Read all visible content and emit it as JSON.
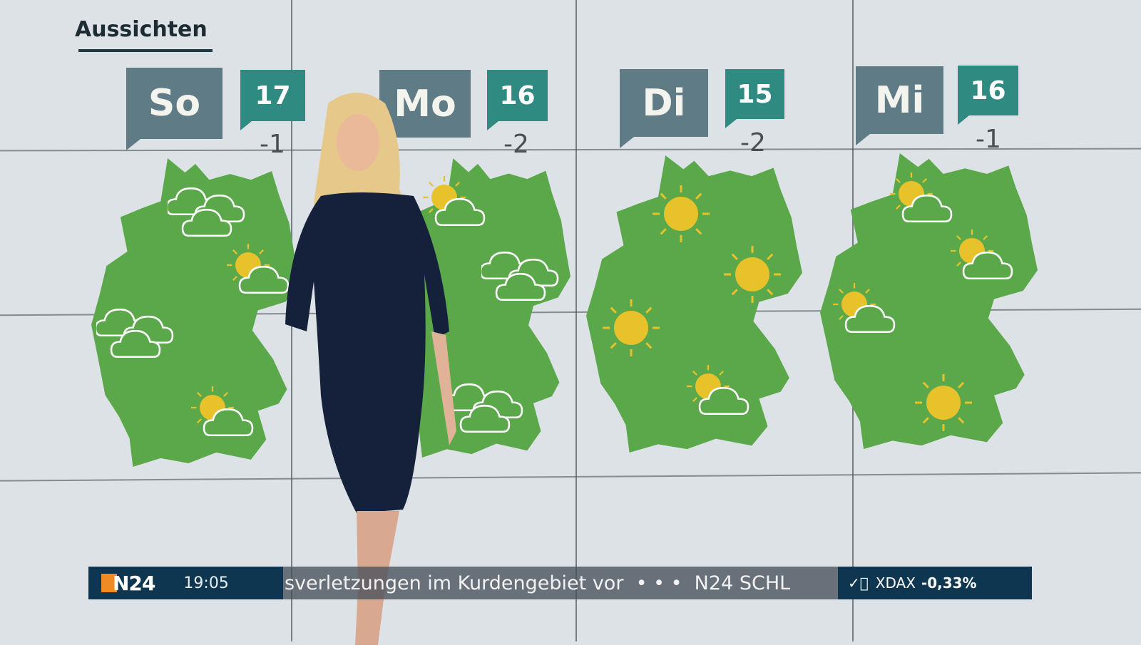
{
  "header": {
    "title": "Aussichten"
  },
  "days": [
    {
      "day": "So",
      "max": "17",
      "min": "-1",
      "icons": [
        "cloudy",
        "sun-cloud",
        "cloudy",
        "sun-cloud"
      ]
    },
    {
      "day": "Mo",
      "max": "16",
      "min": "-2",
      "icons": [
        "sun-cloud",
        "cloudy",
        "cloudy"
      ]
    },
    {
      "day": "Di",
      "max": "15",
      "min": "-2",
      "icons": [
        "sun",
        "sun",
        "sun",
        "sun-cloud"
      ]
    },
    {
      "day": "Mi",
      "max": "16",
      "min": "-1",
      "icons": [
        "sun-cloud",
        "sun-cloud",
        "sun-cloud",
        "sun"
      ]
    }
  ],
  "ticker": {
    "logo": "N24",
    "time": "19:05",
    "headline": "sverletzungen im Kurdengebiet vor  • • •  N24 SCHL",
    "index_name": "XDAX",
    "index_change": "-0,33%",
    "icon": "check-circle-icon"
  },
  "colors": {
    "land": "#5aa84a",
    "day_box": "#5f7b85",
    "temp_box": "#2f8a82",
    "sun": "#e8c22a",
    "ticker": "#0f3650",
    "logo": "#f08a24"
  }
}
